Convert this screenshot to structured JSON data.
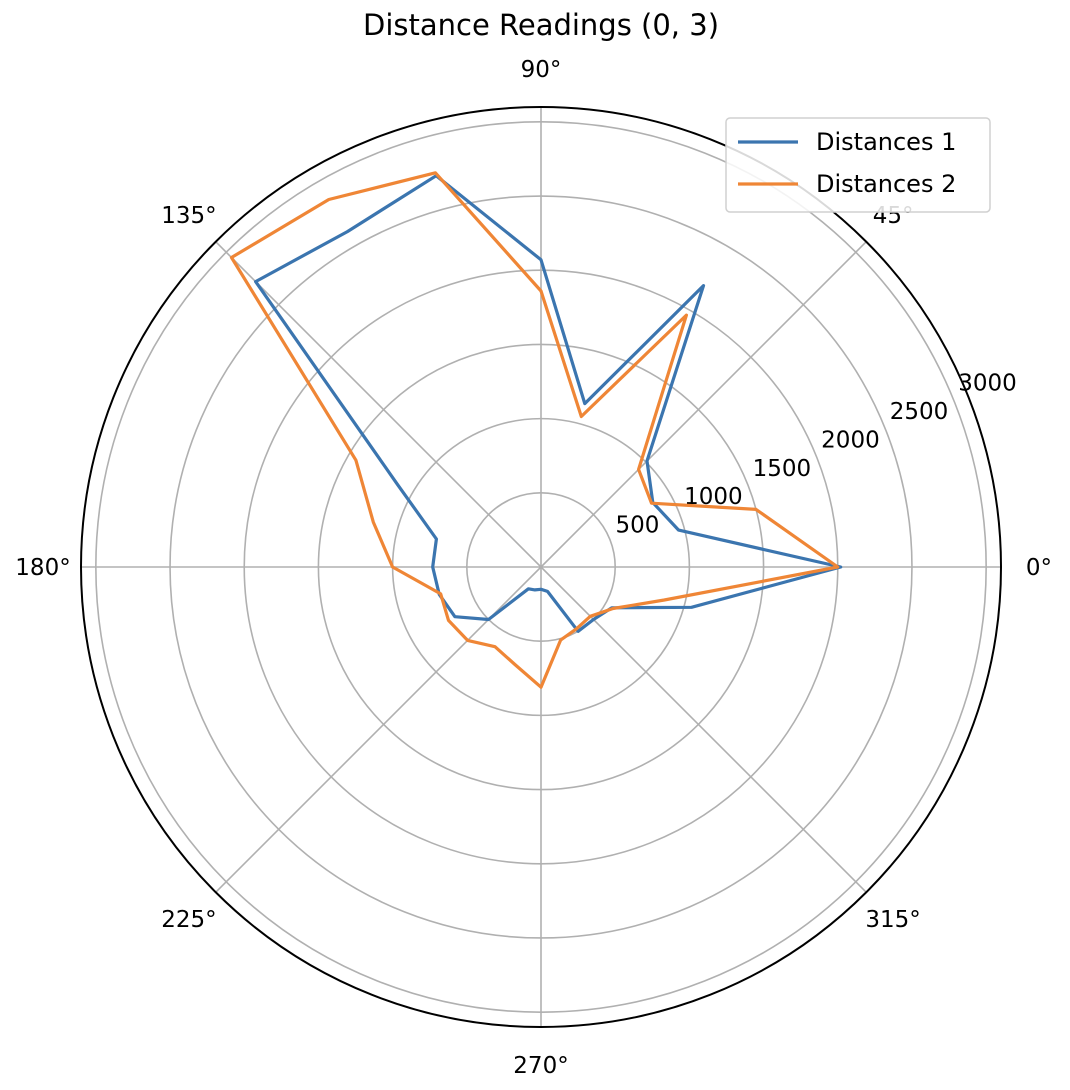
{
  "chart_data": {
    "type": "line",
    "subtype": "polar",
    "title": "Distance Readings (0, 3)",
    "theta_unit": "degrees",
    "theta_ticks": [
      "0°",
      "45°",
      "90°",
      "135°",
      "180°",
      "225°",
      "270°",
      "315°"
    ],
    "r_ticks": [
      "500",
      "1000",
      "1500",
      "2000",
      "2500",
      "3000"
    ],
    "r_tick_values": [
      500,
      1000,
      1500,
      2000,
      2500,
      3000
    ],
    "rlim": [
      0,
      3100
    ],
    "grid": true,
    "legend_position": "top-right",
    "theta": [
      0,
      15,
      30,
      45,
      60,
      75,
      90,
      105,
      120,
      135,
      150,
      165,
      180,
      195,
      210,
      225,
      240,
      255,
      270,
      285,
      300,
      315,
      330,
      345
    ],
    "series": [
      {
        "name": "Distances 1",
        "color": "#3b75af",
        "values": [
          2020,
          960,
          870,
          1010,
          2190,
          1140,
          2070,
          2730,
          2610,
          2720,
          1120,
          730,
          730,
          710,
          670,
          500,
          170,
          160,
          150,
          170,
          500,
          500,
          550,
          1050
        ]
      },
      {
        "name": "Distances 2",
        "color": "#ef8636",
        "values": [
          2000,
          1500,
          860,
          930,
          1960,
          1050,
          1860,
          2750,
          2860,
          2950,
          1440,
          1170,
          1000,
          700,
          720,
          700,
          620,
          680,
          810,
          510,
          480,
          470,
          560,
          860
        ]
      }
    ]
  }
}
